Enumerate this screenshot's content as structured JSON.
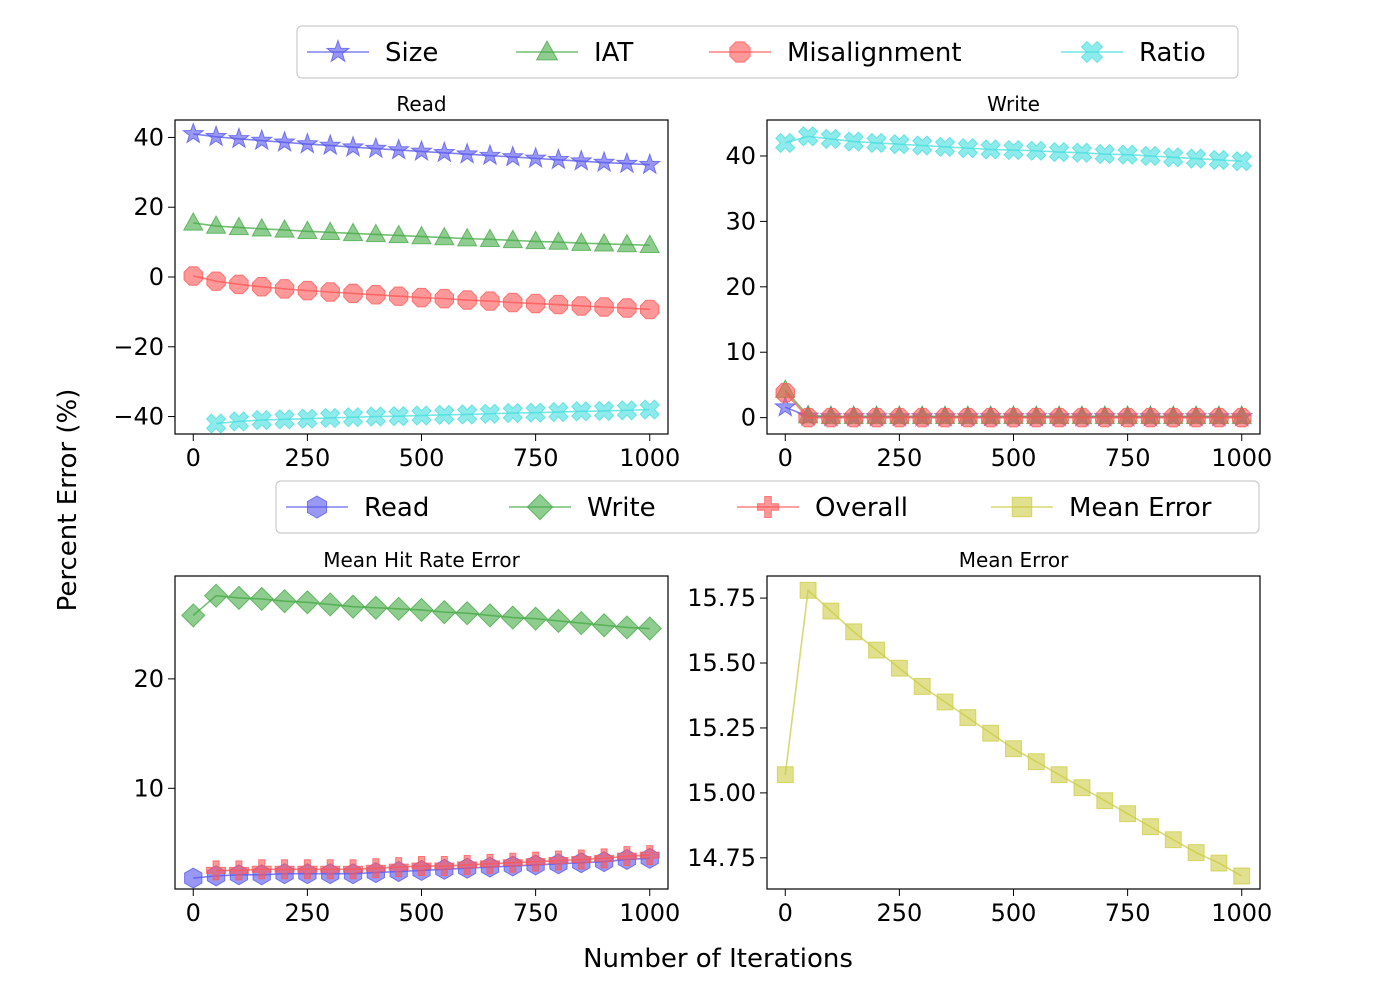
{
  "figure": {
    "ylabel": "Percent Error (%)",
    "xlabel": "Number of Iterations"
  },
  "legend_top": {
    "placement": "top-center",
    "entries": [
      {
        "name": "Size",
        "color": "#5555ee",
        "marker": "star"
      },
      {
        "name": "IAT",
        "color": "#44aa44",
        "marker": "triangle"
      },
      {
        "name": "Misalignment",
        "color": "#ff5555",
        "marker": "octagon"
      },
      {
        "name": "Ratio",
        "color": "#44dddd",
        "marker": "x"
      }
    ]
  },
  "legend_bottom": {
    "placement": "center",
    "entries": [
      {
        "name": "Read",
        "color": "#5555ee",
        "marker": "hexagon"
      },
      {
        "name": "Write",
        "color": "#44aa44",
        "marker": "diamond"
      },
      {
        "name": "Overall",
        "color": "#ff5555",
        "marker": "plus"
      },
      {
        "name": "Mean Error",
        "color": "#cccc44",
        "marker": "square"
      }
    ]
  },
  "chart_data": [
    {
      "type": "line",
      "title": "Read",
      "xlim": [
        -40,
        1040
      ],
      "ylim": [
        -45,
        45
      ],
      "xticks": [
        0,
        250,
        500,
        750,
        1000
      ],
      "yticks": [
        -40,
        -20,
        0,
        20,
        40
      ],
      "ytick_labels": [
        "−40",
        "−20",
        "0",
        "20",
        "40"
      ],
      "x": [
        0,
        50,
        100,
        150,
        200,
        250,
        300,
        350,
        400,
        450,
        500,
        550,
        600,
        650,
        700,
        750,
        800,
        850,
        900,
        950,
        1000
      ],
      "series": [
        {
          "name": "Size",
          "marker": "star",
          "color": "#5555ee",
          "values": [
            41,
            40.2,
            39.6,
            39.1,
            38.6,
            38.1,
            37.7,
            37.2,
            36.8,
            36.4,
            36.0,
            35.6,
            35.2,
            34.8,
            34.4,
            34.0,
            33.6,
            33.2,
            32.8,
            32.5,
            32.2
          ]
        },
        {
          "name": "IAT",
          "marker": "triangle",
          "color": "#44aa44",
          "values": [
            15.5,
            14.6,
            14.2,
            13.8,
            13.5,
            13.1,
            12.8,
            12.5,
            12.2,
            11.9,
            11.6,
            11.3,
            11.0,
            10.8,
            10.5,
            10.2,
            10.0,
            9.7,
            9.5,
            9.3,
            9.1
          ]
        },
        {
          "name": "Misalignment",
          "marker": "octagon",
          "color": "#ff5555",
          "values": [
            0.3,
            -1.2,
            -2.1,
            -2.8,
            -3.4,
            -3.9,
            -4.3,
            -4.7,
            -5.1,
            -5.5,
            -5.9,
            -6.2,
            -6.6,
            -6.9,
            -7.3,
            -7.6,
            -7.9,
            -8.3,
            -8.6,
            -8.9,
            -9.3
          ]
        },
        {
          "name": "Ratio",
          "marker": "x",
          "color": "#44dddd",
          "values": [
            null,
            -42,
            -41.4,
            -41.0,
            -40.8,
            -40.6,
            -40.4,
            -40.2,
            -40.0,
            -39.9,
            -39.7,
            -39.5,
            -39.4,
            -39.2,
            -39.0,
            -38.9,
            -38.7,
            -38.5,
            -38.4,
            -38.2,
            -38.0
          ]
        }
      ]
    },
    {
      "type": "line",
      "title": "Write",
      "xlim": [
        -40,
        1040
      ],
      "ylim": [
        -2.5,
        45.5
      ],
      "xticks": [
        0,
        250,
        500,
        750,
        1000
      ],
      "yticks": [
        0,
        10,
        20,
        30,
        40
      ],
      "ytick_labels": [
        "0",
        "10",
        "20",
        "30",
        "40"
      ],
      "x": [
        0,
        50,
        100,
        150,
        200,
        250,
        300,
        350,
        400,
        450,
        500,
        550,
        600,
        650,
        700,
        750,
        800,
        850,
        900,
        950,
        1000
      ],
      "series": [
        {
          "name": "Size",
          "marker": "star",
          "color": "#5555ee",
          "values": [
            1.6,
            0.2,
            0.1,
            0.1,
            0.1,
            0.1,
            0.1,
            0.1,
            0.1,
            0.1,
            0.1,
            0.1,
            0.1,
            0.1,
            0.1,
            0.1,
            0.1,
            0.1,
            0.1,
            0.1,
            0.1
          ]
        },
        {
          "name": "IAT",
          "marker": "triangle",
          "color": "#44aa44",
          "values": [
            4.2,
            0.3,
            0.2,
            0.2,
            0.2,
            0.2,
            0.2,
            0.2,
            0.2,
            0.2,
            0.2,
            0.2,
            0.2,
            0.2,
            0.2,
            0.2,
            0.2,
            0.2,
            0.2,
            0.2,
            0.2
          ]
        },
        {
          "name": "Misalignment",
          "marker": "octagon",
          "color": "#ff5555",
          "values": [
            3.8,
            0.0,
            0.0,
            0.0,
            0.0,
            0.0,
            0.0,
            0.0,
            0.0,
            0.0,
            0.0,
            0.0,
            0.0,
            0.0,
            0.0,
            0.0,
            0.0,
            0.0,
            0.0,
            0.0,
            0.0
          ]
        },
        {
          "name": "Ratio",
          "marker": "x",
          "color": "#44dddd",
          "values": [
            42.0,
            43.0,
            42.6,
            42.2,
            42.0,
            41.8,
            41.6,
            41.4,
            41.2,
            41.0,
            40.9,
            40.8,
            40.6,
            40.5,
            40.3,
            40.2,
            40.0,
            39.8,
            39.6,
            39.4,
            39.2
          ]
        }
      ]
    },
    {
      "type": "line",
      "title": "Mean Hit Rate Error",
      "xlim": [
        -40,
        1040
      ],
      "ylim": [
        0.8,
        29.4
      ],
      "xticks": [
        0,
        250,
        500,
        750,
        1000
      ],
      "yticks": [
        10,
        20
      ],
      "ytick_labels": [
        "10",
        "20"
      ],
      "x": [
        0,
        50,
        100,
        150,
        200,
        250,
        300,
        350,
        400,
        450,
        500,
        550,
        600,
        650,
        700,
        750,
        800,
        850,
        900,
        950,
        1000
      ],
      "series": [
        {
          "name": "Read",
          "marker": "hexagon",
          "color": "#5555ee",
          "values": [
            1.8,
            2.0,
            2.1,
            2.1,
            2.2,
            2.2,
            2.2,
            2.2,
            2.3,
            2.4,
            2.5,
            2.6,
            2.7,
            2.8,
            2.9,
            3.0,
            3.1,
            3.2,
            3.3,
            3.5,
            3.6
          ]
        },
        {
          "name": "Write",
          "marker": "diamond",
          "color": "#44aa44",
          "values": [
            25.8,
            27.6,
            27.4,
            27.3,
            27.1,
            27.0,
            26.8,
            26.6,
            26.5,
            26.4,
            26.3,
            26.1,
            26.0,
            25.8,
            25.6,
            25.5,
            25.3,
            25.1,
            24.9,
            24.7,
            24.6
          ]
        },
        {
          "name": "Overall",
          "marker": "plus",
          "color": "#ff5555",
          "values": [
            null,
            2.5,
            2.5,
            2.6,
            2.6,
            2.6,
            2.6,
            2.6,
            2.7,
            2.8,
            2.9,
            2.9,
            3.0,
            3.1,
            3.2,
            3.3,
            3.4,
            3.5,
            3.6,
            3.8,
            3.9
          ]
        }
      ]
    },
    {
      "type": "line",
      "title": "Mean Error",
      "xlim": [
        -40,
        1040
      ],
      "ylim": [
        14.63,
        15.835
      ],
      "xticks": [
        0,
        250,
        500,
        750,
        1000
      ],
      "yticks": [
        14.75,
        15.0,
        15.25,
        15.5,
        15.75
      ],
      "ytick_labels": [
        "14.75",
        "15.00",
        "15.25",
        "15.50",
        "15.75"
      ],
      "x": [
        0,
        50,
        100,
        150,
        200,
        250,
        300,
        350,
        400,
        450,
        500,
        550,
        600,
        650,
        700,
        750,
        800,
        850,
        900,
        950,
        1000
      ],
      "series": [
        {
          "name": "Mean Error",
          "marker": "square",
          "color": "#cccc44",
          "values": [
            15.07,
            15.78,
            15.7,
            15.62,
            15.55,
            15.48,
            15.41,
            15.35,
            15.29,
            15.23,
            15.17,
            15.12,
            15.07,
            15.02,
            14.97,
            14.92,
            14.87,
            14.82,
            14.77,
            14.73,
            14.68
          ]
        }
      ]
    }
  ]
}
